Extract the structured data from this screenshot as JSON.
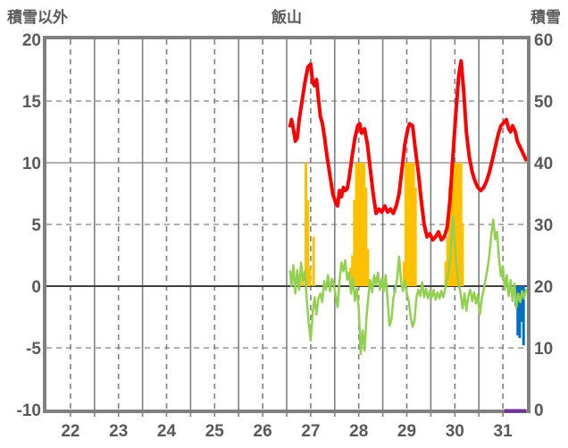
{
  "header": {
    "left_axis_title": "積雪以外",
    "title": "飯山",
    "right_axis_title": "積雪"
  },
  "chart_data": {
    "type": "combo-line-bar",
    "title": "飯山",
    "x_axis": {
      "labels": [
        "22",
        "23",
        "24",
        "25",
        "26",
        "27",
        "28",
        "29",
        "30",
        "31"
      ],
      "label_positions": [
        22.5,
        23.5,
        24.5,
        25.5,
        26.5,
        27.5,
        28.5,
        29.5,
        30.5,
        31.5
      ],
      "range": [
        22,
        32
      ],
      "solid_gridline_days": [
        23,
        24,
        25,
        26,
        27,
        28,
        29,
        30,
        31
      ],
      "dashed_gridline_days": [
        22.5,
        23.5,
        24.5,
        25.5,
        26.5,
        27.5,
        28.5,
        29.5,
        30.5,
        31.5
      ]
    },
    "left_axis": {
      "title": "積雪以外",
      "range": [
        -10,
        20
      ],
      "ticks": [
        20,
        15,
        10,
        5,
        0,
        -5,
        -10
      ],
      "tick_labels": [
        "20",
        "15",
        "10",
        "5",
        "0",
        "-5",
        "-10"
      ]
    },
    "right_axis": {
      "title": "積雪",
      "range": [
        0,
        60
      ],
      "ticks": [
        60,
        50,
        40,
        30,
        20,
        10,
        0
      ],
      "tick_labels": [
        "60",
        "50",
        "40",
        "30",
        "20",
        "10",
        "0"
      ]
    },
    "grid": {
      "h_dashed": [
        15,
        5,
        -5
      ],
      "h_solid": [
        10
      ],
      "zero_line": 0
    },
    "colors": {
      "red_line": "#FF0000",
      "green_line": "#92D050",
      "orange_bars": "#FFC000",
      "blue_bars": "#0070C0",
      "purple_marker": "#7030A0",
      "axis": "#808080",
      "zero": "#3F3F3F",
      "text": "#595959"
    },
    "series": {
      "red_line": {
        "type": "line",
        "axis": "right",
        "stroke_width": 4,
        "points": [
          [
            27.07,
            46
          ],
          [
            27.1,
            47
          ],
          [
            27.14,
            45.5
          ],
          [
            27.18,
            43.5
          ],
          [
            27.22,
            44
          ],
          [
            27.26,
            47
          ],
          [
            27.32,
            50
          ],
          [
            27.38,
            53
          ],
          [
            27.44,
            55.5
          ],
          [
            27.5,
            56
          ],
          [
            27.54,
            53
          ],
          [
            27.58,
            52.5
          ],
          [
            27.62,
            53.5
          ],
          [
            27.66,
            50.5
          ],
          [
            27.7,
            47.5
          ],
          [
            27.74,
            46.5
          ],
          [
            27.78,
            44.5
          ],
          [
            27.84,
            41
          ],
          [
            27.9,
            38
          ],
          [
            27.96,
            35
          ],
          [
            28.02,
            33.5
          ],
          [
            28.06,
            33
          ],
          [
            28.1,
            35.5
          ],
          [
            28.14,
            34.5
          ],
          [
            28.18,
            36
          ],
          [
            28.22,
            35.5
          ],
          [
            28.26,
            35.8
          ],
          [
            28.3,
            37.5
          ],
          [
            28.36,
            41
          ],
          [
            28.42,
            44
          ],
          [
            28.48,
            46
          ],
          [
            28.52,
            46.3
          ],
          [
            28.56,
            44.8
          ],
          [
            28.62,
            45.5
          ],
          [
            28.68,
            43
          ],
          [
            28.74,
            39
          ],
          [
            28.8,
            35
          ],
          [
            28.86,
            31.8
          ],
          [
            28.92,
            32.5
          ],
          [
            28.98,
            32
          ],
          [
            29.04,
            33
          ],
          [
            29.1,
            32
          ],
          [
            29.16,
            32.5
          ],
          [
            29.22,
            31.8
          ],
          [
            29.28,
            33
          ],
          [
            29.34,
            35
          ],
          [
            29.4,
            39
          ],
          [
            29.46,
            43
          ],
          [
            29.52,
            45.5
          ],
          [
            29.56,
            46.3
          ],
          [
            29.62,
            46
          ],
          [
            29.68,
            42
          ],
          [
            29.74,
            38.5
          ],
          [
            29.8,
            34
          ],
          [
            29.86,
            30
          ],
          [
            29.92,
            28
          ],
          [
            29.98,
            28.5
          ],
          [
            30.04,
            27.5
          ],
          [
            30.1,
            28
          ],
          [
            30.16,
            28.8
          ],
          [
            30.22,
            27.5
          ],
          [
            30.28,
            28
          ],
          [
            30.34,
            29.5
          ],
          [
            30.4,
            34
          ],
          [
            30.46,
            41
          ],
          [
            30.52,
            48
          ],
          [
            30.58,
            54
          ],
          [
            30.63,
            56.5
          ],
          [
            30.68,
            52
          ],
          [
            30.74,
            45
          ],
          [
            30.8,
            41
          ],
          [
            30.86,
            38.5
          ],
          [
            30.92,
            37
          ],
          [
            30.98,
            36
          ],
          [
            31.04,
            35.5
          ],
          [
            31.1,
            36
          ],
          [
            31.16,
            37
          ],
          [
            31.22,
            38.5
          ],
          [
            31.28,
            40.5
          ],
          [
            31.34,
            42.5
          ],
          [
            31.4,
            44.5
          ],
          [
            31.46,
            46
          ],
          [
            31.52,
            46.5
          ],
          [
            31.57,
            47
          ],
          [
            31.62,
            45.5
          ],
          [
            31.66,
            45
          ],
          [
            31.7,
            46
          ],
          [
            31.76,
            45
          ],
          [
            31.8,
            43.5
          ],
          [
            31.86,
            42.5
          ],
          [
            31.92,
            41.5
          ],
          [
            31.98,
            40.5
          ]
        ]
      },
      "green_line": {
        "type": "line",
        "axis": "left",
        "stroke_width": 2.5,
        "points": [
          [
            27.07,
            1.2
          ],
          [
            27.1,
            0
          ],
          [
            27.14,
            1.7
          ],
          [
            27.18,
            -0.6
          ],
          [
            27.22,
            1.3
          ],
          [
            27.26,
            -0.3
          ],
          [
            27.3,
            1.9
          ],
          [
            27.34,
            0.4
          ],
          [
            27.38,
            1.2
          ],
          [
            27.42,
            -1.2
          ],
          [
            27.46,
            -3
          ],
          [
            27.5,
            -4.4
          ],
          [
            27.54,
            -2.2
          ],
          [
            27.58,
            -0.9
          ],
          [
            27.62,
            -2.3
          ],
          [
            27.66,
            -1
          ],
          [
            27.7,
            -0.6
          ],
          [
            27.74,
            -1.3
          ],
          [
            27.78,
            0.4
          ],
          [
            27.82,
            -0.3
          ],
          [
            27.86,
            0.9
          ],
          [
            27.9,
            -0.4
          ],
          [
            27.94,
            0.6
          ],
          [
            27.98,
            0.2
          ],
          [
            28.02,
            -0.8
          ],
          [
            28.06,
            -1.7
          ],
          [
            28.1,
            0.4
          ],
          [
            28.14,
            1.9
          ],
          [
            28.18,
            1.2
          ],
          [
            28.22,
            2.1
          ],
          [
            28.26,
            0.5
          ],
          [
            28.3,
            1.1
          ],
          [
            28.34,
            -0.6
          ],
          [
            28.38,
            0.7
          ],
          [
            28.42,
            -1.2
          ],
          [
            28.46,
            -0.2
          ],
          [
            28.5,
            -1.8
          ],
          [
            28.54,
            -5.5
          ],
          [
            28.58,
            -3.6
          ],
          [
            28.62,
            -5.2
          ],
          [
            28.66,
            -2.6
          ],
          [
            28.7,
            -0.8
          ],
          [
            28.74,
            0.5
          ],
          [
            28.78,
            -0.5
          ],
          [
            28.82,
            0.9
          ],
          [
            28.86,
            0.1
          ],
          [
            28.9,
            1.1
          ],
          [
            28.94,
            -0.3
          ],
          [
            28.98,
            0.6
          ],
          [
            29.02,
            -0.4
          ],
          [
            29.06,
            0.9
          ],
          [
            29.1,
            -1.1
          ],
          [
            29.14,
            -3.2
          ],
          [
            29.18,
            -2.7
          ],
          [
            29.22,
            -1
          ],
          [
            29.26,
            -0.2
          ],
          [
            29.3,
            0.6
          ],
          [
            29.34,
            2.4
          ],
          [
            29.38,
            0.4
          ],
          [
            29.42,
            -0.4
          ],
          [
            29.46,
            0.5
          ],
          [
            29.5,
            -0.6
          ],
          [
            29.54,
            -1.2
          ],
          [
            29.58,
            -2.5
          ],
          [
            29.62,
            -3.3
          ],
          [
            29.66,
            -2.8
          ],
          [
            29.7,
            -0.9
          ],
          [
            29.74,
            -0.3
          ],
          [
            29.78,
            -0.8
          ],
          [
            29.82,
            0.3
          ],
          [
            29.86,
            -0.9
          ],
          [
            29.9,
            -0.2
          ],
          [
            29.94,
            -1
          ],
          [
            29.98,
            -0.4
          ],
          [
            30.02,
            -0.9
          ],
          [
            30.06,
            -0.3
          ],
          [
            30.1,
            -1.1
          ],
          [
            30.14,
            -0.5
          ],
          [
            30.18,
            -1
          ],
          [
            30.22,
            -0.4
          ],
          [
            30.26,
            -0.9
          ],
          [
            30.3,
            -0.2
          ],
          [
            30.34,
            0.6
          ],
          [
            30.38,
            1.4
          ],
          [
            30.42,
            3.2
          ],
          [
            30.46,
            5.7
          ],
          [
            30.5,
            3.4
          ],
          [
            30.54,
            1.2
          ],
          [
            30.58,
            0.2
          ],
          [
            30.62,
            -0.6
          ],
          [
            30.66,
            -1.8
          ],
          [
            30.7,
            -0.6
          ],
          [
            30.74,
            -2
          ],
          [
            30.78,
            -0.8
          ],
          [
            30.82,
            -0.3
          ],
          [
            30.86,
            -1.2
          ],
          [
            30.9,
            -0.5
          ],
          [
            30.94,
            -1.4
          ],
          [
            30.98,
            -0.7
          ],
          [
            31.02,
            -2.3
          ],
          [
            31.06,
            -1
          ],
          [
            31.1,
            -0.3
          ],
          [
            31.14,
            0.6
          ],
          [
            31.18,
            1.4
          ],
          [
            31.22,
            2.6
          ],
          [
            31.26,
            4.2
          ],
          [
            31.3,
            5.4
          ],
          [
            31.34,
            3.8
          ],
          [
            31.38,
            4.4
          ],
          [
            31.42,
            2.2
          ],
          [
            31.46,
            0.8
          ],
          [
            31.5,
            1.6
          ],
          [
            31.54,
            -0.3
          ],
          [
            31.58,
            0.9
          ],
          [
            31.62,
            -0.8
          ],
          [
            31.66,
            0.5
          ],
          [
            31.7,
            -1.2
          ],
          [
            31.74,
            0.2
          ],
          [
            31.78,
            -1.7
          ],
          [
            31.82,
            -0.6
          ],
          [
            31.86,
            -1.3
          ],
          [
            31.9,
            -0.4
          ],
          [
            31.94,
            -1
          ],
          [
            31.98,
            -0.3
          ]
        ]
      },
      "orange_bars": {
        "type": "bar",
        "axis": "left",
        "bar_width_days": 0.056,
        "points": [
          [
            27.33,
            1
          ],
          [
            27.4,
            10
          ],
          [
            27.44,
            7
          ],
          [
            27.48,
            1.5
          ],
          [
            27.56,
            4
          ],
          [
            28.33,
            1.5
          ],
          [
            28.37,
            2.5
          ],
          [
            28.41,
            7
          ],
          [
            28.45,
            10
          ],
          [
            28.49,
            10
          ],
          [
            28.53,
            10
          ],
          [
            28.57,
            10
          ],
          [
            28.61,
            10
          ],
          [
            28.65,
            8
          ],
          [
            28.69,
            3
          ],
          [
            29.44,
            2
          ],
          [
            29.48,
            10
          ],
          [
            29.52,
            10
          ],
          [
            29.56,
            10
          ],
          [
            29.6,
            10
          ],
          [
            29.64,
            10
          ],
          [
            29.68,
            8
          ],
          [
            30.31,
            2
          ],
          [
            30.35,
            4
          ],
          [
            30.39,
            8
          ],
          [
            30.43,
            10
          ],
          [
            30.47,
            10
          ],
          [
            30.51,
            10
          ],
          [
            30.55,
            10
          ],
          [
            30.59,
            10
          ],
          [
            30.63,
            10
          ],
          [
            30.66,
            5
          ]
        ]
      },
      "blue_bars": {
        "type": "bar",
        "axis": "left",
        "bar_width_days": 0.056,
        "points": [
          [
            29.25,
            -0.5
          ],
          [
            31.77,
            -1.6
          ],
          [
            31.81,
            -4
          ],
          [
            31.85,
            -4.2
          ],
          [
            31.89,
            -2.9
          ],
          [
            31.93,
            -4.8
          ]
        ]
      },
      "purple_marker": {
        "type": "segment",
        "axis": "left",
        "value": -10,
        "from_day": 31.53,
        "to_day": 31.98,
        "stroke_width": 4
      }
    }
  }
}
